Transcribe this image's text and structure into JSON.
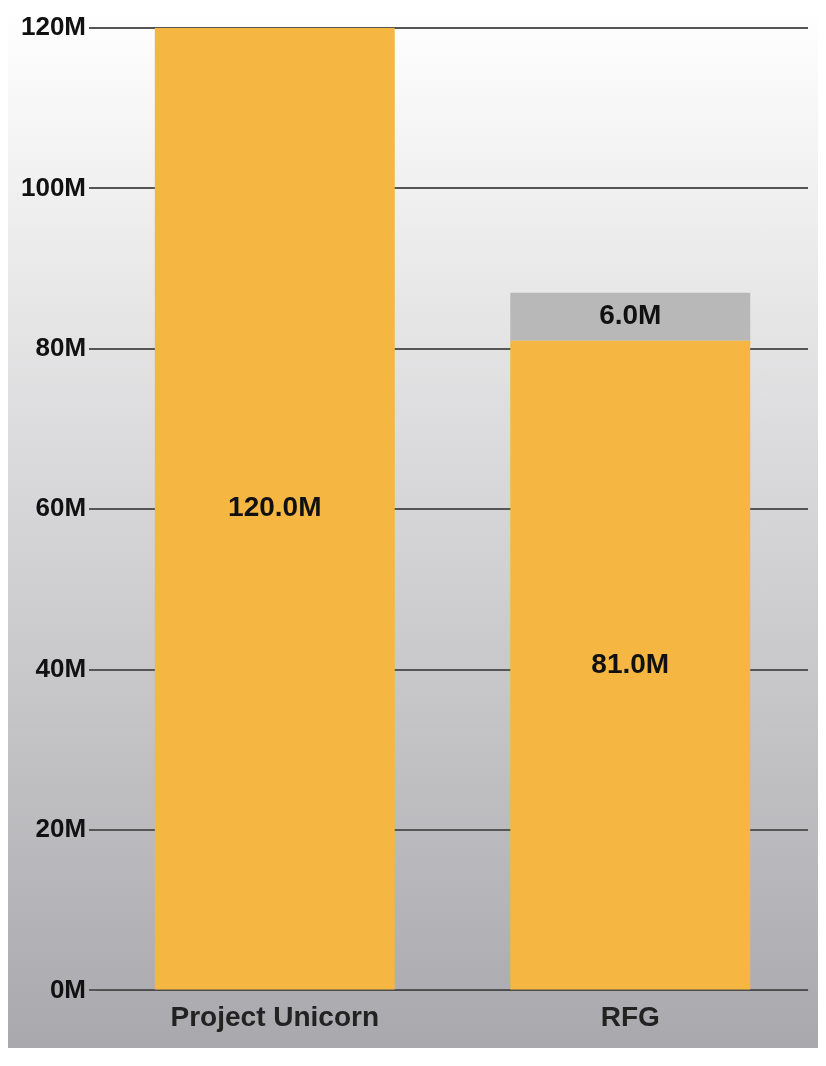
{
  "chart_data": {
    "type": "bar",
    "stacked": true,
    "categories": [
      "Project Unicorn",
      "RFG"
    ],
    "series": [
      {
        "color": "#f5b642",
        "values": [
          120,
          81
        ],
        "value_labels": [
          "120.0M",
          "81.0M"
        ]
      },
      {
        "color": "#b8b8b8",
        "values": [
          null,
          6
        ],
        "value_labels": [
          null,
          "6.0M"
        ]
      }
    ],
    "ylim": [
      0,
      120
    ],
    "yticks": [
      {
        "value": 0,
        "label": "0M"
      },
      {
        "value": 20,
        "label": "20M"
      },
      {
        "value": 40,
        "label": "40M"
      },
      {
        "value": 60,
        "label": "60M"
      },
      {
        "value": 80,
        "label": "80M"
      },
      {
        "value": 100,
        "label": "100M"
      },
      {
        "value": 120,
        "label": "120M"
      }
    ],
    "grid": "y",
    "legend": false
  }
}
